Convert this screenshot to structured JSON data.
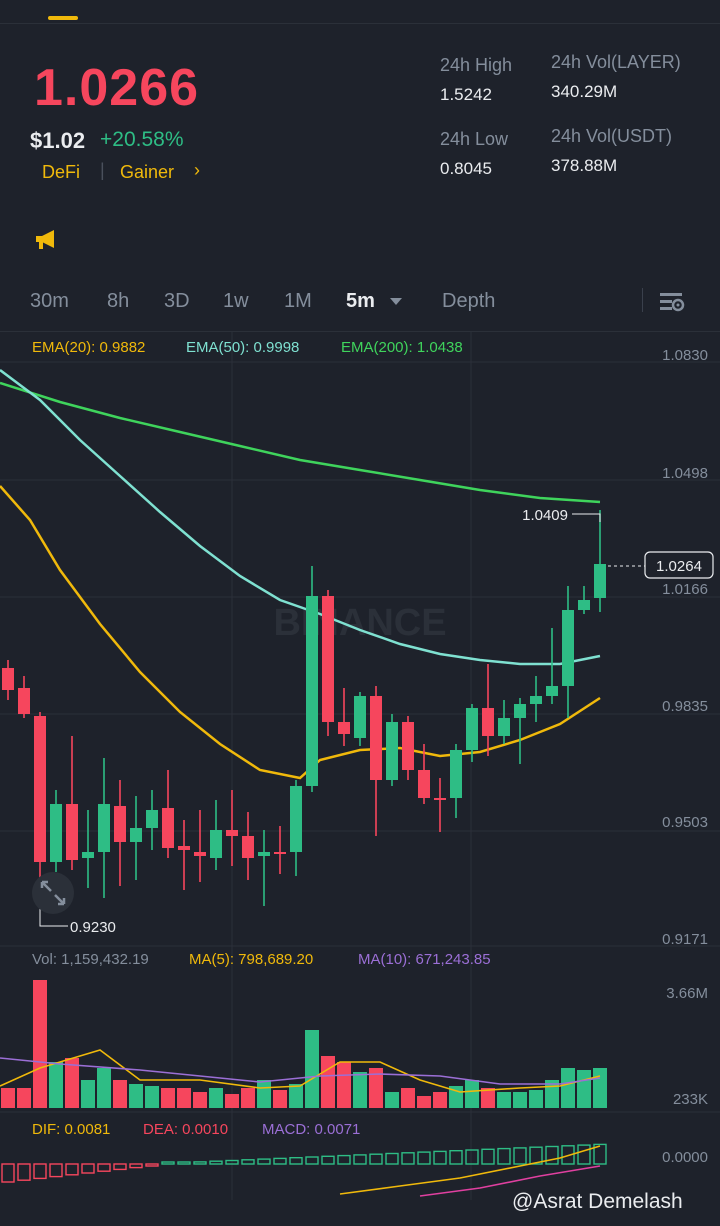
{
  "header": {
    "price": "1.0266",
    "usd_price": "$1.02",
    "change_pct": "+20.58%",
    "tag_1": "DeFi",
    "tag_separator": "|",
    "tag_2": "Gainer",
    "tag_chevron": "›"
  },
  "stats": {
    "high_label": "24h High",
    "high_value": "1.5242",
    "low_label": "24h Low",
    "low_value": "0.8045",
    "vol_coin_label": "24h Vol(LAYER)",
    "vol_coin_value": "340.29M",
    "vol_usdt_label": "24h Vol(USDT)",
    "vol_usdt_value": "378.88M"
  },
  "timeframes": {
    "items": [
      "30m",
      "8h",
      "3D",
      "1w",
      "1M",
      "5m"
    ],
    "active": "5m",
    "depth_label": "Depth"
  },
  "indicators": {
    "ema20": "EMA(20): 0.9882",
    "ema50": "EMA(50): 0.9998",
    "ema200": "EMA(200): 1.0438",
    "vol": "Vol: 1,159,432.19",
    "ma5": "MA(5): 798,689.20",
    "ma10": "MA(10): 671,243.85",
    "dif": "DIF: 0.0081",
    "dea": "DEA: 0.0010",
    "macd": "MACD: 0.0071"
  },
  "price_axis": {
    "labels": [
      "1.0830",
      "1.0498",
      "1.0166",
      "0.9835",
      "0.9503",
      "0.9171"
    ],
    "current": "1.0264",
    "high_marker": "1.0409",
    "low_marker": "0.9230"
  },
  "volume_axis": {
    "top": "3.66M",
    "bottom": "233K"
  },
  "macd_axis": {
    "zero": "0.0000"
  },
  "watermark": {
    "text": "BINANCE",
    "credit": "@Asrat Demelash"
  },
  "colors": {
    "up": "#2ebd85",
    "down": "#f6465d",
    "ema20": "#f0b90b",
    "ema50": "#7fe1d1",
    "ema200": "#3fd45c",
    "ma10": "#9b6fd6",
    "accent": "#f0b90b"
  },
  "icons": {
    "announcement": "megaphone-icon",
    "settings": "chart-settings-icon",
    "expand": "expand-arrows-icon",
    "dropdown": "caret-down-icon"
  }
}
